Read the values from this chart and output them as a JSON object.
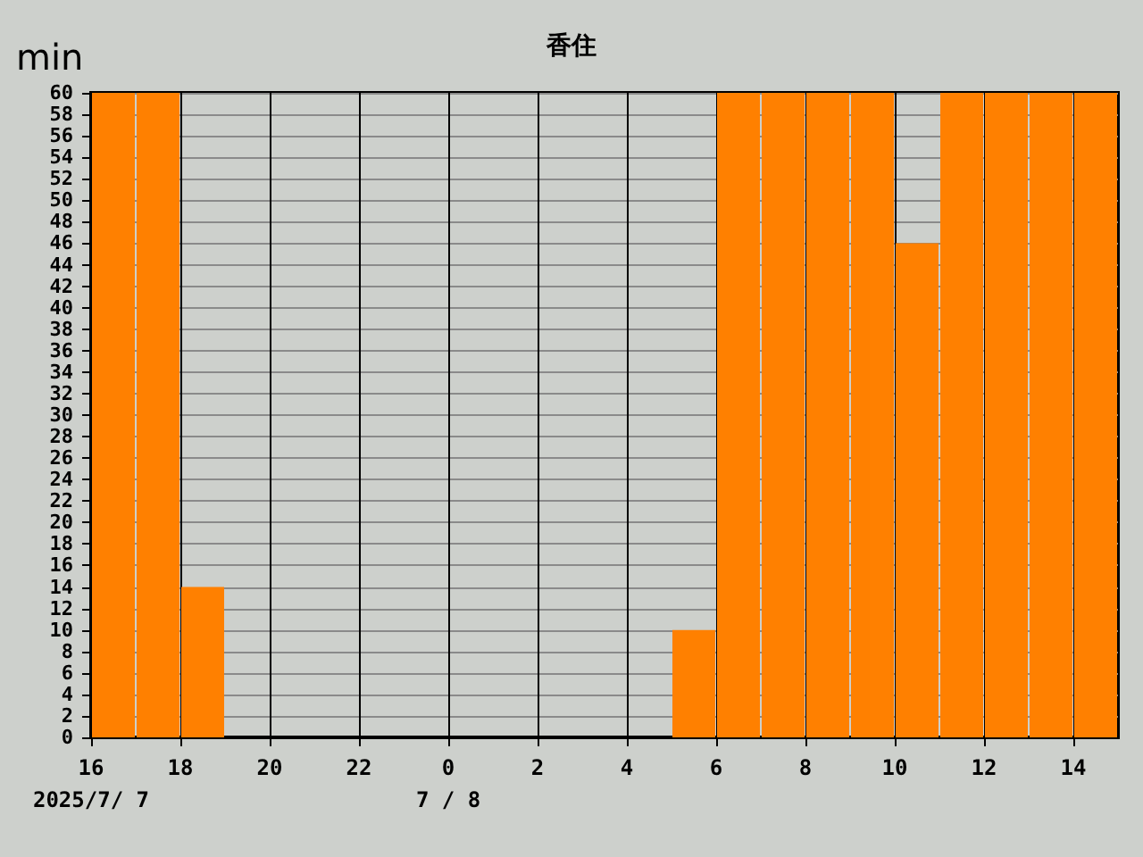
{
  "chart_data": {
    "type": "bar",
    "title": "香住",
    "ylabel": "min",
    "x": [
      "2025-07-07T16:30",
      "2025-07-07T17:30",
      "2025-07-07T18:30",
      "2025-07-07T19:30",
      "2025-07-07T20:30",
      "2025-07-07T21:30",
      "2025-07-07T22:30",
      "2025-07-07T23:30",
      "2025-07-08T00:30",
      "2025-07-08T01:30",
      "2025-07-08T02:30",
      "2025-07-08T03:30",
      "2025-07-08T04:30",
      "2025-07-08T05:30",
      "2025-07-08T06:30",
      "2025-07-08T07:30",
      "2025-07-08T08:30",
      "2025-07-08T09:30",
      "2025-07-08T10:30",
      "2025-07-08T11:30",
      "2025-07-08T12:30",
      "2025-07-08T13:30",
      "2025-07-08T14:30"
    ],
    "values": [
      60,
      60,
      14,
      0,
      0,
      0,
      0,
      0,
      0,
      0,
      0,
      0,
      0,
      10,
      60,
      60,
      60,
      60,
      46,
      60,
      60,
      60,
      60
    ],
    "color": "#ff8000",
    "xlim": [
      "2025-07-07T16:00",
      "2025-07-08T15:00"
    ],
    "xticks": [
      {
        "value": "2025-07-07T16:00",
        "label": "16\n2025/7/ 7"
      },
      {
        "value": "2025-07-07T18:00",
        "label": "18"
      },
      {
        "value": "2025-07-07T20:00",
        "label": "20"
      },
      {
        "value": "2025-07-07T22:00",
        "label": "22"
      },
      {
        "value": "2025-07-08T00:00",
        "label": "0\n7 / 8"
      },
      {
        "value": "2025-07-08T02:00",
        "label": "2"
      },
      {
        "value": "2025-07-08T04:00",
        "label": "4"
      },
      {
        "value": "2025-07-08T06:00",
        "label": "6"
      },
      {
        "value": "2025-07-08T08:00",
        "label": "8"
      },
      {
        "value": "2025-07-08T10:00",
        "label": "10"
      },
      {
        "value": "2025-07-08T12:00",
        "label": "12"
      },
      {
        "value": "2025-07-08T14:00",
        "label": "14"
      }
    ],
    "ylim": [
      0,
      60
    ],
    "yticks": [
      0,
      2,
      4,
      6,
      8,
      10,
      12,
      14,
      16,
      18,
      20,
      22,
      24,
      26,
      28,
      30,
      32,
      34,
      36,
      38,
      40,
      42,
      44,
      46,
      48,
      50,
      52,
      54,
      56,
      58,
      60
    ],
    "grid": true
  }
}
